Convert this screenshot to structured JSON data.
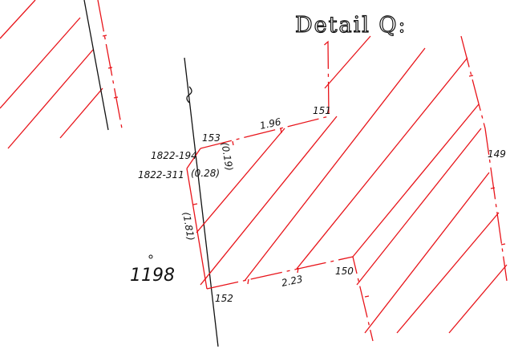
{
  "title": "Detail Q:",
  "labels": {
    "p153": "153",
    "d196": "1.96",
    "p151": "151",
    "p149": "149",
    "l1822_194": "1822-194",
    "d019": "(0.19)",
    "l1822_311": "1822-311",
    "d028": "(0.28)",
    "d181": "(1.81)",
    "lot1198": "1198",
    "p152": "152",
    "d223": "2.23",
    "p150": "150"
  }
}
